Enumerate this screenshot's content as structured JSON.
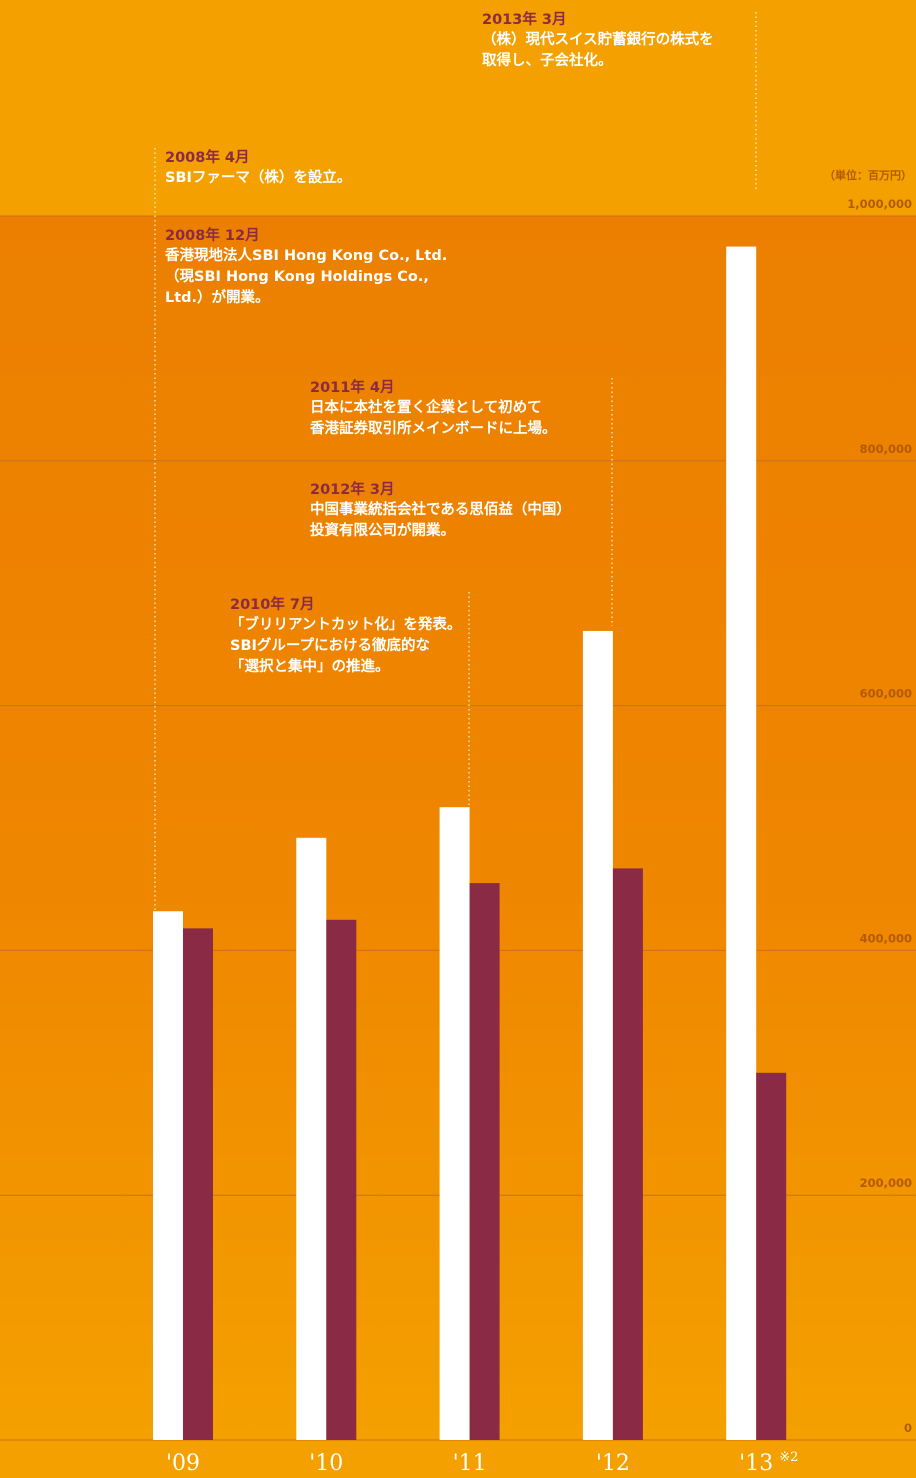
{
  "chart_data": {
    "type": "bar",
    "categories": [
      "'09",
      "'10",
      "'11",
      "'12",
      "'13"
    ],
    "category_suffix": [
      "",
      "",
      "",
      "",
      "※2"
    ],
    "series": [
      {
        "values": [
          432000,
          492000,
          517000,
          661000,
          975000
        ]
      },
      {
        "values": [
          418000,
          425000,
          455000,
          467000,
          300000
        ]
      }
    ],
    "unit_label": "（単位：百万円）",
    "y_ticks": [
      "0",
      "200,000",
      "400,000",
      "600,000",
      "800,000",
      "1,000,000"
    ],
    "ylim": [
      0,
      1000000
    ],
    "grid": true,
    "colors": {
      "background_top": "#f4a000",
      "background_mid": "#ec7f00",
      "series_1": "#ffffff",
      "series_2": "#8b2a45",
      "gridline": "#c8721a",
      "guide_line": "#fff4dc"
    }
  },
  "events": [
    {
      "date": "2013年 3月",
      "text": "（株）現代スイス貯蓄銀行の株式を\n取得し、子会社化。"
    },
    {
      "date": "2008年 4月",
      "text": "SBIファーマ（株）を設立。"
    },
    {
      "date": "2008年 12月",
      "text": "香港現地法人SBI Hong Kong Co., Ltd.\n（現SBI Hong Kong Holdings Co.,\nLtd.）が開業。"
    },
    {
      "date": "2011年 4月",
      "text": "日本に本社を置く企業として初めて\n香港証券取引所メインボードに上場。"
    },
    {
      "date": "2012年 3月",
      "text": "中国事業統括会社である思佰益（中国）\n投資有限公司が開業。"
    },
    {
      "date": "2010年 7月",
      "text": "「ブリリアントカット化」を発表。\nSBIグループにおける徹底的な\n「選択と集中」の推進。"
    }
  ]
}
